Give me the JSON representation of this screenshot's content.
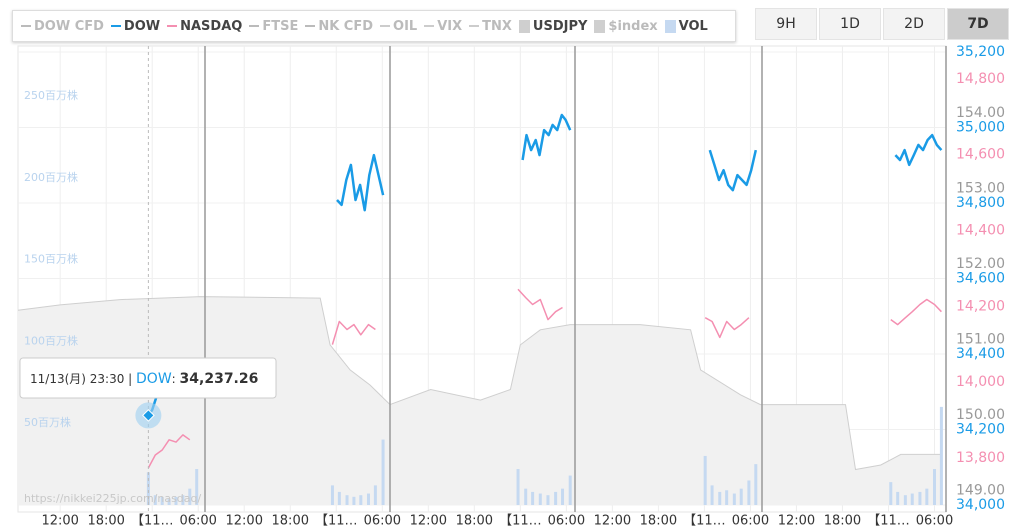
{
  "chart_data": {
    "type": "line",
    "xlim": [
      -5.5,
      115.5
    ],
    "xticks": [
      {
        "value": 0,
        "label": "12:00"
      },
      {
        "value": 6,
        "label": "18:00"
      },
      {
        "value": 12,
        "label": "【11…"
      },
      {
        "value": 18,
        "label": "06:00"
      },
      {
        "value": 24,
        "label": "12:00"
      },
      {
        "value": 30,
        "label": "18:00"
      },
      {
        "value": 36,
        "label": "【11…"
      },
      {
        "value": 42,
        "label": "06:00"
      },
      {
        "value": 48,
        "label": "12:00"
      },
      {
        "value": 54,
        "label": "18:00"
      },
      {
        "value": 60,
        "label": "【11…"
      },
      {
        "value": 66,
        "label": "06:00"
      },
      {
        "value": 72,
        "label": "12:00"
      },
      {
        "value": 78,
        "label": "18:00"
      },
      {
        "value": 84,
        "label": "【11…"
      },
      {
        "value": 90,
        "label": "06:00"
      },
      {
        "value": 96,
        "label": "12:00"
      },
      {
        "value": 102,
        "label": "18:00"
      },
      {
        "value": 108,
        "label": "【11…"
      },
      {
        "value": 114,
        "label": "06:00"
      }
    ],
    "grid": true,
    "series": [
      {
        "name": "DOW CFD",
        "color": "#bbbbbb",
        "marker": "line"
      },
      {
        "name": "DOW",
        "color": "#1a9be6",
        "marker": "line",
        "active": true,
        "ylim": [
          34000,
          35200
        ],
        "yticks": [
          {
            "value": 35200,
            "label": "35,200"
          },
          {
            "value": 35000,
            "label": "35,000"
          },
          {
            "value": 34800,
            "label": "34,800"
          },
          {
            "value": 34600,
            "label": "34,600"
          },
          {
            "value": 34400,
            "label": "34,400"
          },
          {
            "value": 34200,
            "label": "34,200"
          },
          {
            "value": 34000,
            "label": "34,000"
          }
        ],
        "x": [
          11.5,
          12.0,
          12.5,
          13.0,
          35.5,
          36.1,
          36.7,
          37.3,
          37.9,
          38.5,
          39.1,
          39.7,
          40.3,
          40.9,
          41.5,
          42.1,
          59.7,
          60.3,
          60.8,
          61.4,
          62.0,
          62.5,
          63.1,
          63.7,
          64.2,
          64.8,
          65.4,
          65.9,
          66.5,
          84.1,
          84.7,
          85.3,
          85.9,
          86.5,
          87.1,
          87.7,
          88.3,
          88.9,
          89.5,
          90.1,
          90.7,
          108.3,
          108.9,
          109.5,
          110.1,
          110.7,
          111.3,
          111.9,
          112.5,
          113.1,
          113.7,
          114.3,
          114.9
        ],
        "values": [
          34237.26,
          34252,
          34283,
          34331,
          null,
          34808,
          34795,
          34861,
          34901,
          34808,
          34848,
          34781,
          34874,
          34927,
          34874,
          34821,
          null,
          34914,
          34980,
          34940,
          34967,
          34927,
          34993,
          34980,
          35007,
          34993,
          35033,
          35020,
          34993,
          null,
          34940,
          34901,
          34861,
          34887,
          34848,
          34834,
          34874,
          34861,
          34848,
          34887,
          34940,
          null,
          34927,
          34914,
          34940,
          34901,
          34927,
          34954,
          34940,
          34967,
          34980,
          34954,
          34940
        ]
      },
      {
        "name": "NASDAQ",
        "color": "#f48fb1",
        "marker": "line",
        "active": true,
        "ylim": [
          13676,
          14871
        ],
        "yticks": [
          {
            "value": 14800,
            "label": "14,800"
          },
          {
            "value": 14600,
            "label": "14,600"
          },
          {
            "value": 14400,
            "label": "14,400"
          },
          {
            "value": 14200,
            "label": "14,200"
          },
          {
            "value": 14000,
            "label": "14,000"
          },
          {
            "value": 13800,
            "label": "13,800"
          }
        ],
        "x": [
          11.5,
          12.4,
          13.3,
          14.2,
          15.1,
          16.0,
          16.9,
          17.8,
          35.5,
          36.4,
          37.4,
          38.3,
          39.2,
          40.2,
          41.1,
          42.1,
          59.7,
          60.7,
          61.6,
          62.6,
          63.6,
          64.6,
          65.5,
          66.5,
          84.1,
          85.0,
          86.0,
          86.9,
          87.9,
          88.8,
          89.8,
          90.7,
          108.3,
          109.2,
          110.2,
          111.1,
          112.1,
          113.0,
          114.0,
          114.9
        ],
        "values": [
          13774,
          13808,
          13821,
          13848,
          13842,
          13861,
          13848,
          null,
          14099,
          14160,
          14139,
          14152,
          14125,
          14152,
          14139,
          null,
          14245,
          14223,
          14205,
          14218,
          14165,
          14186,
          14197,
          null,
          14170,
          14160,
          14118,
          14160,
          14139,
          14152,
          14170,
          null,
          14165,
          14152,
          14170,
          14186,
          14205,
          14218,
          14205,
          14186
        ]
      },
      {
        "name": "FTSE",
        "color": "#bbbbbb",
        "marker": "line"
      },
      {
        "name": "NK CFD",
        "color": "#bbbbbb",
        "marker": "line"
      },
      {
        "name": "OIL",
        "color": "#cccccc",
        "marker": "dash"
      },
      {
        "name": "VIX",
        "color": "#cccccc",
        "marker": "dash"
      },
      {
        "name": "TNX",
        "color": "#cccccc",
        "marker": "dash"
      },
      {
        "name": "USDJPY",
        "color": "#cfcfcf",
        "marker": "box",
        "active": true,
        "ylim": [
          148.81,
          154.81
        ],
        "yticks": [
          {
            "value": 154,
            "label": "154.00"
          },
          {
            "value": 153,
            "label": "153.00"
          },
          {
            "value": 152,
            "label": "152.00"
          },
          {
            "value": 151,
            "label": "151.00"
          },
          {
            "value": 150,
            "label": "150.00"
          },
          {
            "value": 149,
            "label": "149.00"
          }
        ],
        "x": [
          -5.5,
          0,
          7.8,
          18.3,
          33.9,
          35.2,
          37.8,
          40.4,
          43.0,
          48.3,
          54.8,
          58.7,
          60.0,
          62.6,
          66.5,
          75.6,
          82.2,
          83.5,
          88.7,
          91.3,
          102.4,
          103.7,
          107.0,
          109.6,
          114.8
        ],
        "values": [
          151.39,
          151.46,
          151.53,
          151.57,
          151.55,
          150.93,
          150.6,
          150.4,
          150.14,
          150.34,
          150.2,
          150.34,
          150.93,
          151.13,
          151.2,
          151.2,
          151.13,
          150.6,
          150.27,
          150.14,
          150.14,
          149.28,
          149.34,
          149.48,
          149.48
        ]
      },
      {
        "name": "$index",
        "color": "#cfcfcf",
        "marker": "box"
      },
      {
        "name": "VOL",
        "color": "#c5d9f1",
        "marker": "box",
        "active": true,
        "type": "bar",
        "ylim": [
          0,
          277
        ],
        "yticks": [
          {
            "value": 250,
            "label": "250百万株"
          },
          {
            "value": 200,
            "label": "200百万株"
          },
          {
            "value": 150,
            "label": "150百万株"
          },
          {
            "value": 100,
            "label": "100百万株"
          },
          {
            "value": 50,
            "label": "50百万株"
          }
        ],
        "x": [
          11.5,
          12.4,
          13.3,
          14.2,
          15.1,
          16.0,
          16.9,
          17.8,
          35.5,
          36.4,
          37.4,
          38.3,
          39.2,
          40.2,
          41.1,
          42.1,
          59.7,
          60.7,
          61.6,
          62.6,
          63.6,
          64.6,
          65.5,
          66.5,
          84.1,
          85.0,
          86.0,
          86.9,
          87.9,
          88.8,
          89.8,
          90.7,
          108.3,
          109.2,
          110.2,
          111.1,
          112.1,
          113.0,
          114.0,
          114.9
        ],
        "values": [
          20,
          6,
          5,
          4,
          5,
          6,
          10,
          22,
          12,
          8,
          6,
          5,
          6,
          7,
          12,
          40,
          22,
          10,
          8,
          7,
          6,
          8,
          10,
          18,
          30,
          12,
          8,
          9,
          7,
          10,
          15,
          25,
          14,
          8,
          6,
          7,
          8,
          10,
          22,
          60
        ]
      }
    ],
    "tooltip": {
      "time": "11/13(月) 23:30",
      "value": 34237.26,
      "value_label": "34,237.26"
    },
    "watermark": "https://nikkei225jp.com/nasdaq/"
  },
  "range_buttons": {
    "labels": [
      "9H",
      "1D",
      "2D",
      "7D"
    ],
    "active": 3
  }
}
